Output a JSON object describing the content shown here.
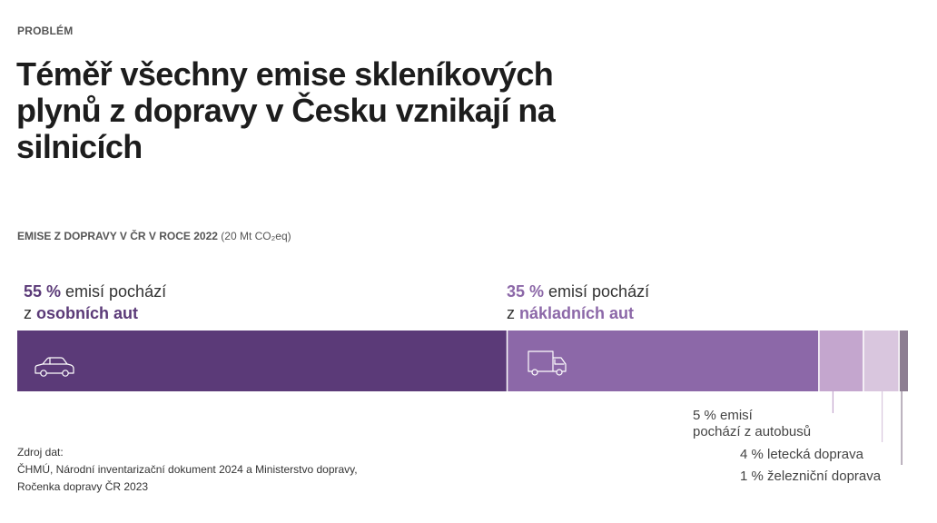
{
  "eyebrow": "PROBLÉM",
  "title": "Téměř všechny emise skleníkových plynů z dopravy v Česku vznikají na silnicích",
  "subtitle": {
    "bold": "EMISE Z DOPRAVY V ČR V ROCE 2022",
    "normal": "(20 Mt CO₂eq)"
  },
  "callouts": {
    "cars": {
      "pct": "55 %",
      "line1_rest": " emisí pochází",
      "line2_prefix": "z ",
      "emph": "osobních aut"
    },
    "trucks": {
      "pct": "35 %",
      "line1_rest": " emisí pochází",
      "line2_prefix": "z ",
      "emph": "nákladních aut"
    }
  },
  "small_labels": {
    "bus_line1": "5 % emisí",
    "bus_line2": "pochází z autobusů",
    "air": "4 % letecká doprava",
    "rail": "1 % železniční doprava"
  },
  "source": {
    "line1": "Zdroj dat:",
    "line2": "ČHMÚ, Národní inventarizační dokument 2024 a  Ministerstvo dopravy,",
    "line3": "Ročenka dopravy ČR 2023"
  },
  "icons": {
    "cars": "car-icon",
    "trucks": "truck-icon"
  },
  "chart_data": {
    "type": "bar",
    "orientation": "horizontal-stacked-100",
    "title": "EMISE Z DOPRAVY V ČR V ROCE 2022",
    "categories": [
      "osobní auta",
      "nákladní auta",
      "autobusy",
      "letecká doprava",
      "železniční doprava"
    ],
    "values": [
      55,
      35,
      5,
      4,
      1
    ],
    "unit": "%",
    "total": "20 Mt CO₂eq",
    "colors": [
      "#5b3a78",
      "#8c68a8",
      "#c4a6ce",
      "#d9c6de",
      "#8d7e92"
    ]
  }
}
